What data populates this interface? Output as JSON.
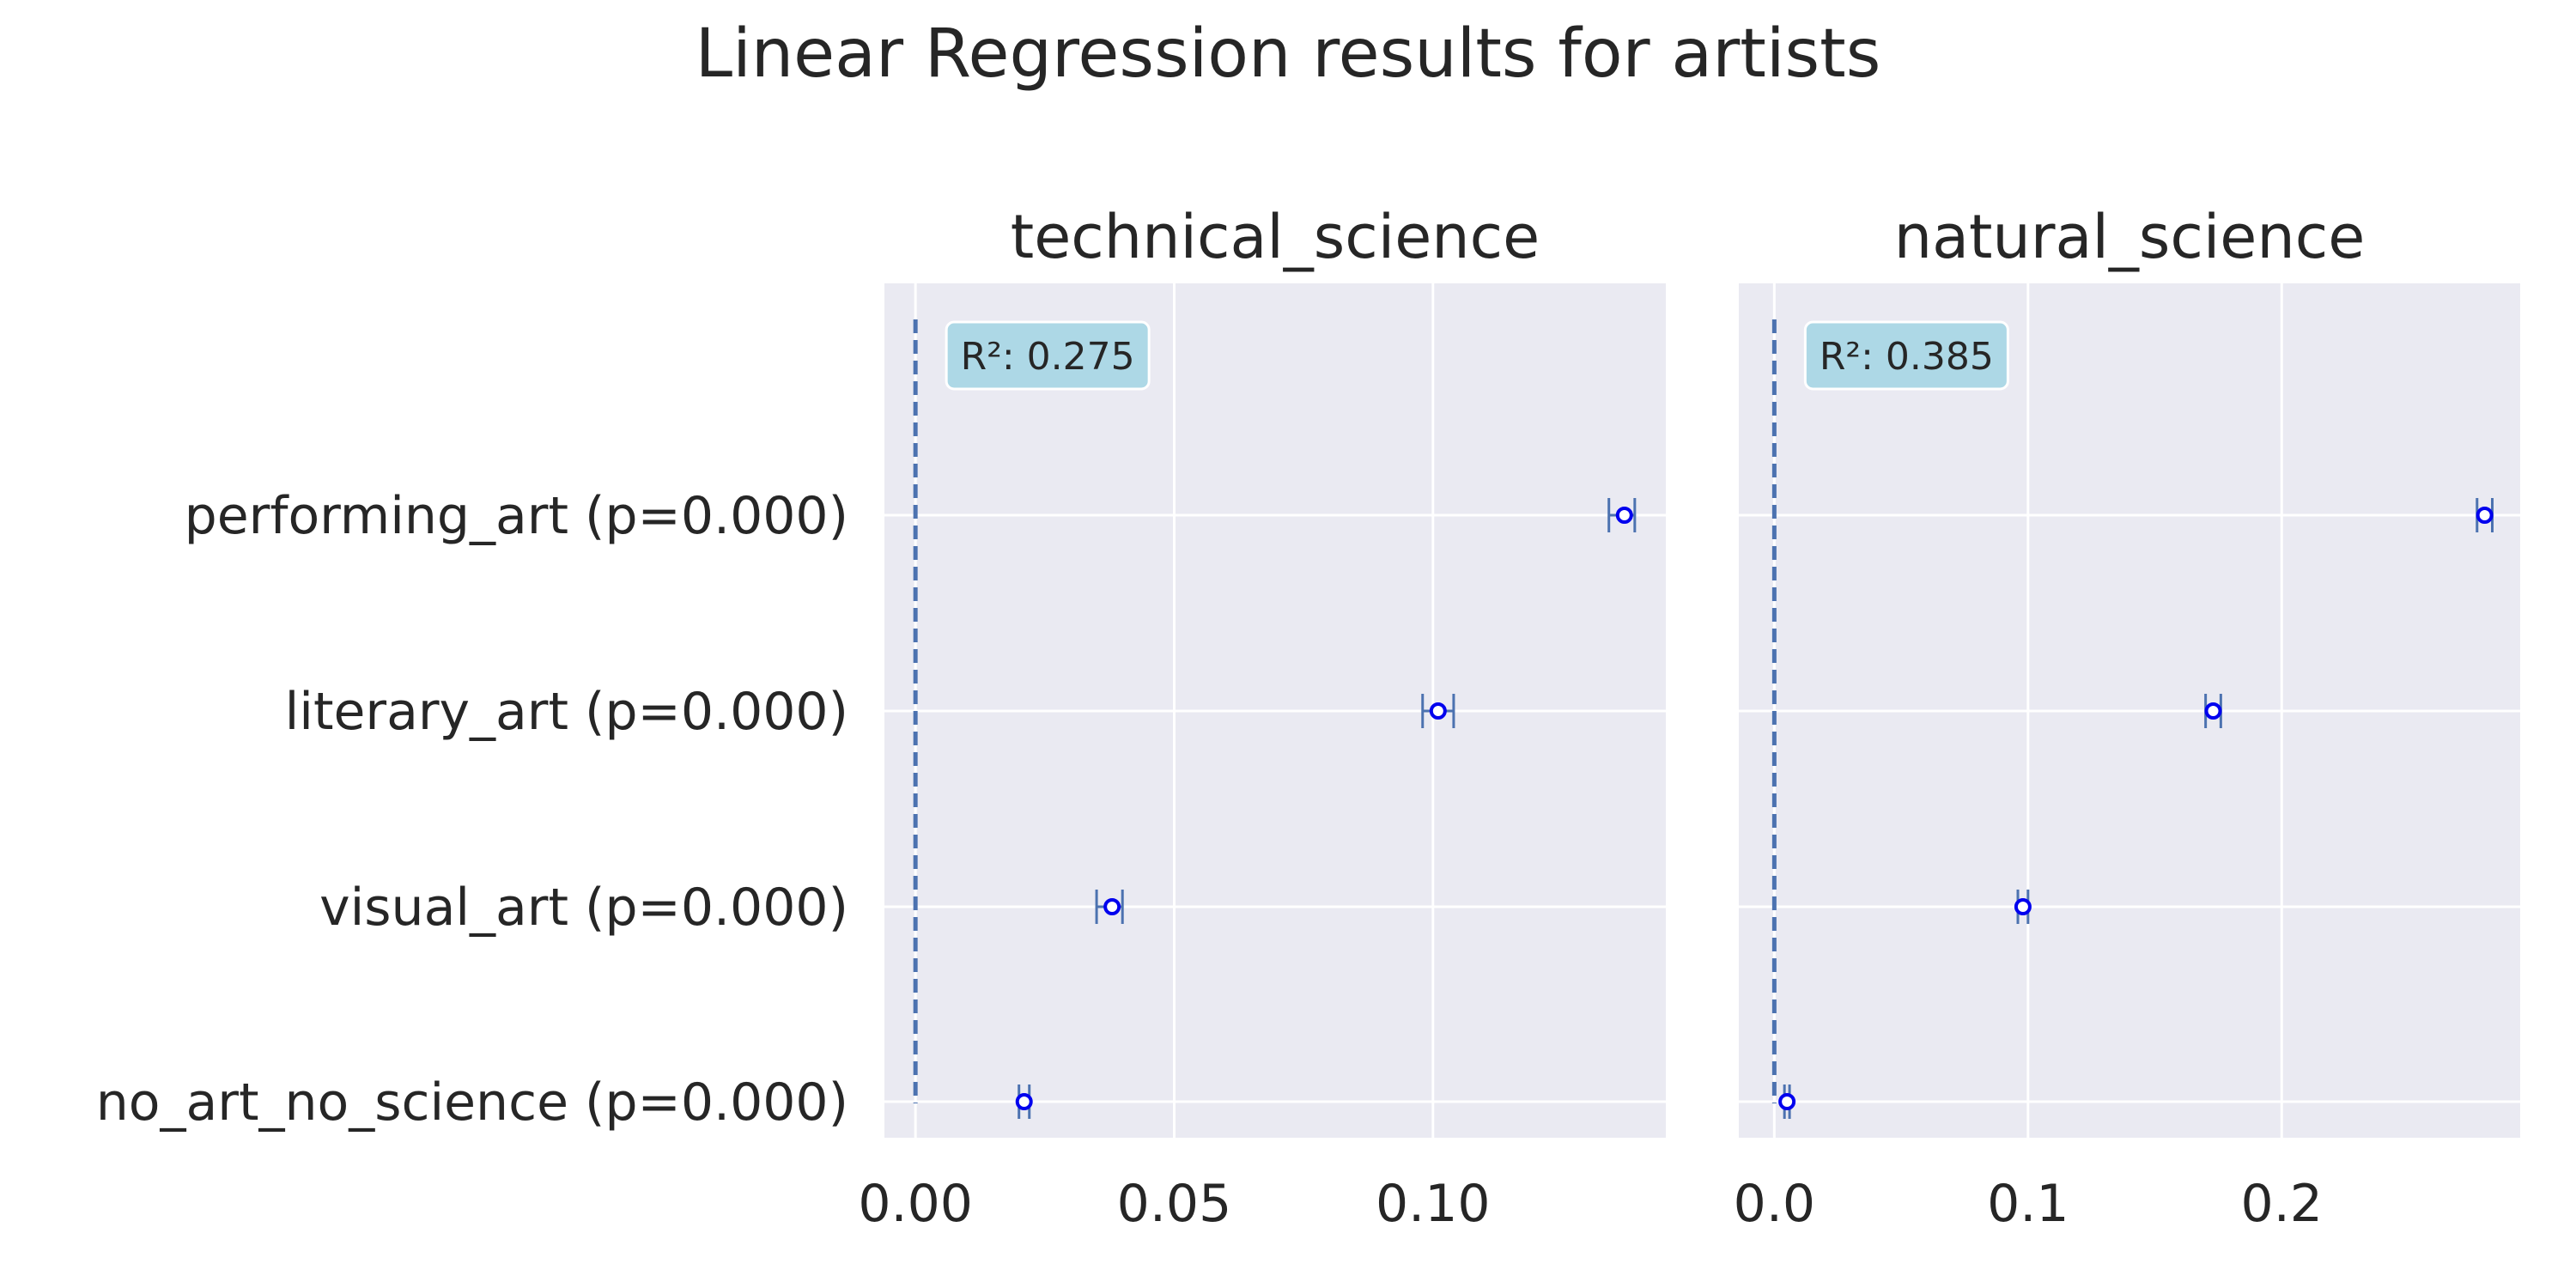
{
  "figure": {
    "title": "Linear Regression results for artists"
  },
  "chart_data": [
    {
      "type": "scatter",
      "title": "technical_science",
      "r2_label": "R²: 0.275",
      "categories": [
        "performing_art (p=0.000)",
        "literary_art (p=0.000)",
        "visual_art (p=0.000)",
        "no_art_no_science (p=0.000)"
      ],
      "values": [
        0.137,
        0.101,
        0.038,
        0.021
      ],
      "ci": [
        [
          0.134,
          0.139
        ],
        [
          0.098,
          0.104
        ],
        [
          0.035,
          0.04
        ],
        [
          0.02,
          0.022
        ]
      ],
      "xlim": [
        -0.006,
        0.145
      ],
      "xticks": [
        0.0,
        0.05,
        0.1
      ],
      "xtick_labels": [
        "0.00",
        "0.05",
        "0.10"
      ],
      "reference_line_x": 0,
      "grid": true,
      "marker_color": "#0000ee",
      "errorbar_color": "#4c72b0",
      "refline_color": "#4c72b0",
      "background": "#eaeaf2",
      "r2_box_color": "#add8e6"
    },
    {
      "type": "scatter",
      "title": "natural_science",
      "r2_label": "R²: 0.385",
      "categories": [
        "performing_art (p=0.000)",
        "literary_art (p=0.000)",
        "visual_art (p=0.000)",
        "no_art_no_science (p=0.000)"
      ],
      "values": [
        0.28,
        0.173,
        0.098,
        0.005
      ],
      "ci": [
        [
          0.277,
          0.283
        ],
        [
          0.17,
          0.176
        ],
        [
          0.096,
          0.1
        ],
        [
          0.004,
          0.006
        ]
      ],
      "xlim": [
        -0.014,
        0.294
      ],
      "xticks": [
        0.0,
        0.1,
        0.2
      ],
      "xtick_labels": [
        "0.0",
        "0.1",
        "0.2"
      ],
      "reference_line_x": 0,
      "grid": true,
      "marker_color": "#0000ee",
      "errorbar_color": "#4c72b0",
      "refline_color": "#4c72b0",
      "background": "#eaeaf2",
      "r2_box_color": "#add8e6"
    }
  ]
}
